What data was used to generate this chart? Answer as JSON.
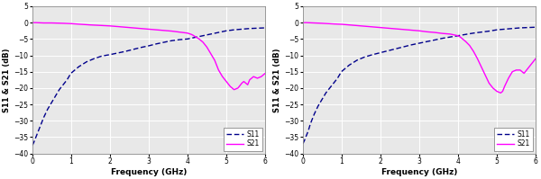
{
  "xlabel": "Frequency (GHz)",
  "ylabel": "S11 & S21 (dB)",
  "xlim": [
    0,
    6
  ],
  "ylim": [
    -40,
    5
  ],
  "yticks": [
    5,
    0,
    -5,
    -10,
    -15,
    -20,
    -25,
    -30,
    -35,
    -40
  ],
  "xticks": [
    0,
    1,
    2,
    3,
    4,
    5,
    6
  ],
  "s11_color": "#00008B",
  "s21_color": "#FF00FF",
  "background_color": "#E8E8E8",
  "legend_labels": [
    "S11",
    "S21"
  ],
  "chart1": {
    "s11_x": [
      0.01,
      0.05,
      0.1,
      0.15,
      0.2,
      0.3,
      0.4,
      0.5,
      0.6,
      0.7,
      0.8,
      0.9,
      1.0,
      1.2,
      1.4,
      1.6,
      1.8,
      2.0,
      2.2,
      2.4,
      2.6,
      2.8,
      3.0,
      3.2,
      3.4,
      3.6,
      3.8,
      4.0,
      4.2,
      4.4,
      4.6,
      4.8,
      5.0,
      5.2,
      5.4,
      5.6,
      5.8,
      6.0
    ],
    "s11_y": [
      -37.5,
      -36.5,
      -35.0,
      -33.5,
      -32.0,
      -29.0,
      -26.5,
      -24.5,
      -22.5,
      -20.5,
      -19.0,
      -17.5,
      -15.5,
      -13.5,
      -12.0,
      -11.0,
      -10.2,
      -9.8,
      -9.3,
      -8.8,
      -8.2,
      -7.6,
      -7.1,
      -6.5,
      -6.0,
      -5.5,
      -5.2,
      -5.0,
      -4.5,
      -4.0,
      -3.5,
      -3.0,
      -2.5,
      -2.2,
      -2.0,
      -1.8,
      -1.7,
      -1.6
    ],
    "s21_x": [
      0.01,
      0.1,
      0.3,
      0.5,
      0.8,
      1.0,
      1.5,
      2.0,
      2.5,
      3.0,
      3.2,
      3.4,
      3.6,
      3.8,
      4.0,
      4.1,
      4.15,
      4.2,
      4.3,
      4.4,
      4.5,
      4.55,
      4.6,
      4.7,
      4.75,
      4.8,
      4.9,
      5.0,
      5.1,
      5.2,
      5.3,
      5.4,
      5.45,
      5.5,
      5.55,
      5.6,
      5.7,
      5.8,
      5.9,
      6.0
    ],
    "s21_y": [
      0.0,
      0.0,
      -0.1,
      -0.1,
      -0.2,
      -0.3,
      -0.7,
      -1.0,
      -1.5,
      -2.0,
      -2.2,
      -2.4,
      -2.6,
      -2.9,
      -3.2,
      -3.6,
      -3.9,
      -4.3,
      -5.0,
      -6.0,
      -7.5,
      -8.5,
      -9.5,
      -11.5,
      -13.0,
      -14.5,
      -16.5,
      -18.0,
      -19.5,
      -20.5,
      -20.0,
      -18.5,
      -18.0,
      -18.5,
      -19.0,
      -17.5,
      -16.5,
      -17.0,
      -16.5,
      -15.5
    ]
  },
  "chart2": {
    "s11_x": [
      0.01,
      0.05,
      0.1,
      0.15,
      0.2,
      0.3,
      0.4,
      0.5,
      0.6,
      0.7,
      0.8,
      0.9,
      1.0,
      1.2,
      1.4,
      1.6,
      1.8,
      2.0,
      2.2,
      2.4,
      2.6,
      2.8,
      3.0,
      3.2,
      3.4,
      3.6,
      3.8,
      4.0,
      4.2,
      4.4,
      4.6,
      4.8,
      5.0,
      5.2,
      5.4,
      5.6,
      5.8,
      6.0
    ],
    "s11_y": [
      -37.0,
      -36.0,
      -34.5,
      -33.0,
      -31.0,
      -28.0,
      -25.5,
      -23.5,
      -21.5,
      -20.0,
      -18.5,
      -17.0,
      -15.0,
      -13.0,
      -11.5,
      -10.5,
      -9.8,
      -9.2,
      -8.6,
      -8.0,
      -7.4,
      -6.8,
      -6.3,
      -5.8,
      -5.3,
      -4.8,
      -4.4,
      -4.0,
      -3.6,
      -3.2,
      -2.9,
      -2.6,
      -2.2,
      -2.0,
      -1.8,
      -1.6,
      -1.5,
      -1.4
    ],
    "s21_x": [
      0.01,
      0.1,
      0.3,
      0.5,
      0.8,
      1.0,
      1.5,
      2.0,
      2.5,
      3.0,
      3.2,
      3.4,
      3.6,
      3.8,
      4.0,
      4.05,
      4.1,
      4.2,
      4.3,
      4.4,
      4.5,
      4.6,
      4.7,
      4.8,
      4.9,
      5.0,
      5.1,
      5.15,
      5.2,
      5.3,
      5.4,
      5.5,
      5.6,
      5.7,
      5.8,
      5.9,
      6.0
    ],
    "s21_y": [
      0.0,
      0.0,
      -0.1,
      -0.2,
      -0.4,
      -0.5,
      -1.0,
      -1.5,
      -2.0,
      -2.5,
      -2.8,
      -3.0,
      -3.3,
      -3.5,
      -4.0,
      -4.3,
      -4.8,
      -5.8,
      -7.0,
      -8.8,
      -11.0,
      -13.5,
      -16.0,
      -18.5,
      -20.0,
      -21.0,
      -21.5,
      -21.0,
      -19.5,
      -17.0,
      -15.0,
      -14.5,
      -14.5,
      -15.5,
      -14.0,
      -12.5,
      -11.0
    ]
  }
}
